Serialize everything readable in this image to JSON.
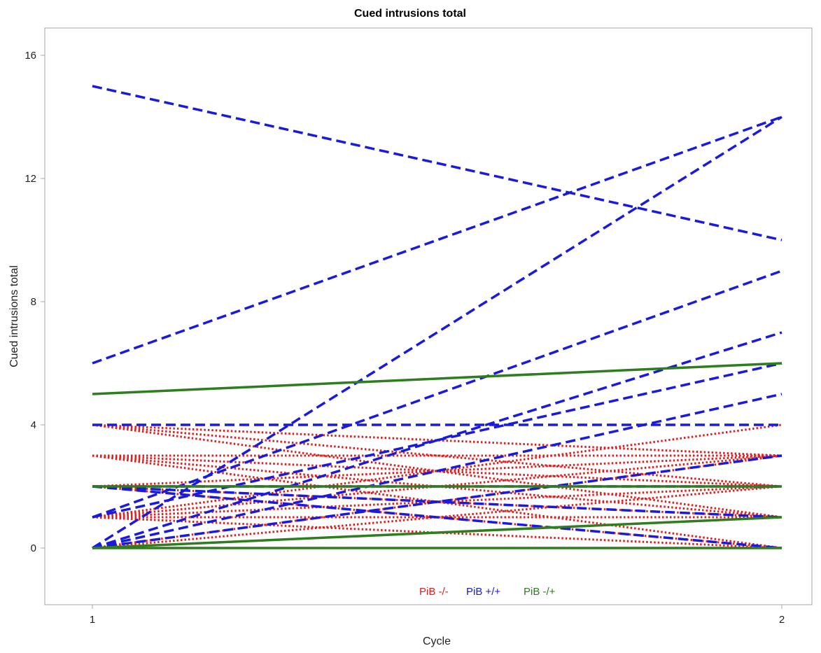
{
  "chart_data": {
    "type": "line",
    "title": "Cued intrusions total",
    "xlabel": "Cycle",
    "ylabel": "Cued intrusions total",
    "x": [
      1,
      2
    ],
    "x_ticks": [
      "1",
      "2"
    ],
    "y_ticks": [
      "0",
      "4",
      "8",
      "12",
      "16"
    ],
    "xlim": [
      1,
      2
    ],
    "ylim": [
      -2,
      17
    ],
    "grid": false,
    "legend_position": "bottom-center",
    "legend": [
      {
        "label": "PiB -/-",
        "color": "#e02020",
        "style": "dotted"
      },
      {
        "label": "PiB +/+",
        "color": "#1a1adf",
        "style": "dashed"
      },
      {
        "label": "PiB -/+",
        "color": "#2e7d1e",
        "style": "solid"
      }
    ],
    "groups": [
      {
        "label": "PiB -/-",
        "color": "#e02020",
        "style": "dotted",
        "lines": [
          [
            4,
            3
          ],
          [
            4,
            2
          ],
          [
            4,
            1
          ],
          [
            3,
            3
          ],
          [
            3,
            2
          ],
          [
            3,
            1
          ],
          [
            3,
            0
          ],
          [
            2,
            3
          ],
          [
            2,
            2
          ],
          [
            2,
            1
          ],
          [
            2,
            0
          ],
          [
            1,
            4
          ],
          [
            1,
            3
          ],
          [
            1,
            2
          ],
          [
            1,
            1
          ],
          [
            1,
            0
          ],
          [
            0,
            0
          ],
          [
            0,
            1
          ],
          [
            0,
            2
          ],
          [
            0,
            3
          ]
        ]
      },
      {
        "label": "PiB +/+",
        "color": "#1a1adf",
        "style": "dashed",
        "lines": [
          [
            15,
            10
          ],
          [
            6,
            14
          ],
          [
            0,
            14
          ],
          [
            4,
            4
          ],
          [
            1,
            9
          ],
          [
            0,
            7
          ],
          [
            1,
            6
          ],
          [
            0,
            5
          ],
          [
            0,
            3
          ],
          [
            2,
            1
          ],
          [
            2,
            0
          ],
          [
            2,
            2
          ]
        ]
      },
      {
        "label": "PiB -/+",
        "color": "#2e7d1e",
        "style": "solid",
        "lines": [
          [
            5,
            6
          ],
          [
            0,
            1
          ],
          [
            0,
            0
          ],
          [
            2,
            2
          ]
        ]
      }
    ]
  }
}
